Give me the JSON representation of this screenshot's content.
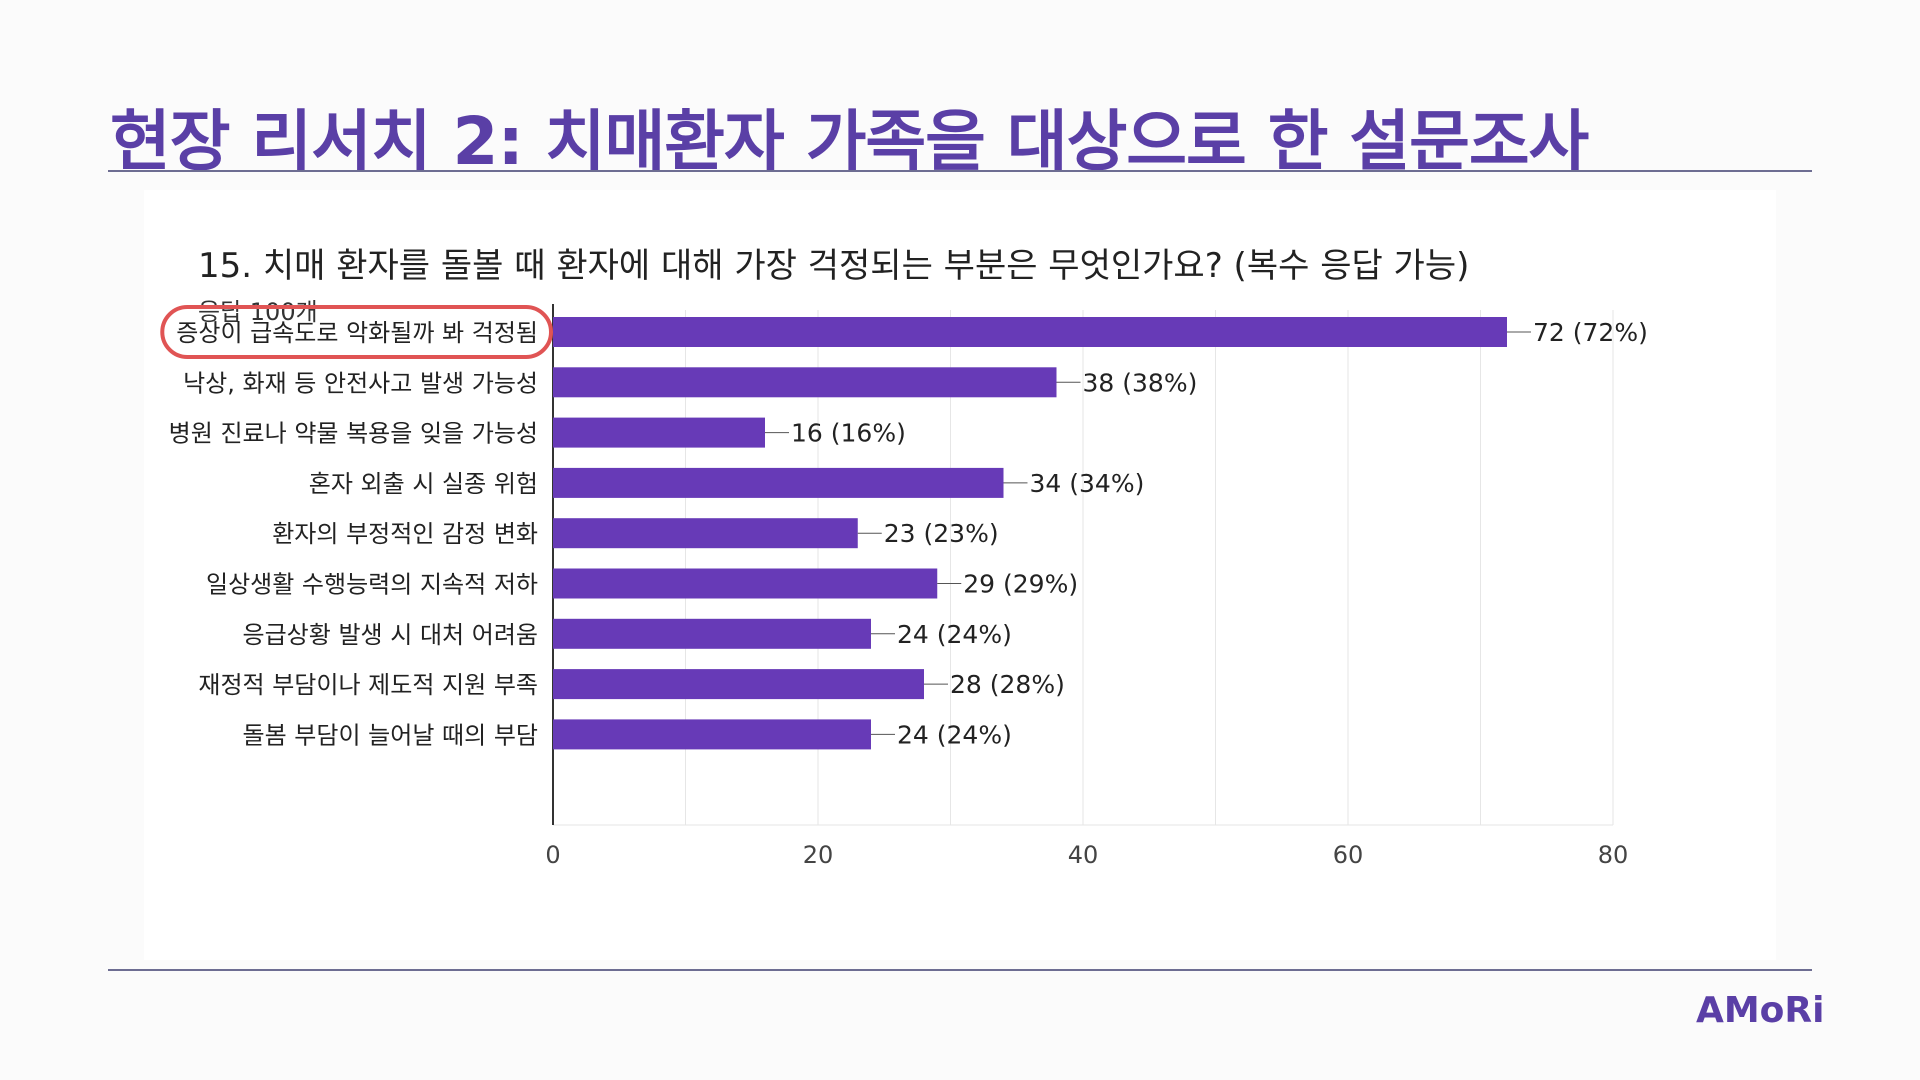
{
  "slide": {
    "title": "현장 리서치 2: 치매환자 가족을 대상으로 한 설문조사",
    "logo": "AMoRi"
  },
  "survey": {
    "question": "15. 치매 환자를 돌볼 때 환자에 대해 가장 걱정되는 부분은 무엇인가요? (복수 응답 가능)",
    "responses": "응답 100개"
  },
  "colors": {
    "title": "#5a3fa6",
    "bar": "#673ab7",
    "highlight": "#e05454",
    "grid": "#e6e6e6",
    "axis": "#333333"
  },
  "chart_data": {
    "type": "bar",
    "orientation": "horizontal",
    "categories": [
      "증상이 급속도로 악화될까 봐 걱정됨",
      "낙상, 화재 등 안전사고 발생 가능성",
      "병원 진료나 약물 복용을 잊을 가능성",
      "혼자 외출 시 실종 위험",
      "환자의 부정적인 감정 변화",
      "일상생활 수행능력의 지속적 저하",
      "응급상황 발생 시 대처 어려움",
      "재정적 부담이나 제도적 지원 부족",
      "돌봄 부담이 늘어날 때의 부담"
    ],
    "values": [
      72,
      38,
      16,
      34,
      23,
      29,
      24,
      28,
      24
    ],
    "labels": [
      "72 (72%)",
      "38 (38%)",
      "16 (16%)",
      "34 (34%)",
      "23 (23%)",
      "29 (29%)",
      "24 (24%)",
      "28 (28%)",
      "24 (24%)"
    ],
    "xlim": [
      0,
      80
    ],
    "xticks": [
      0,
      20,
      40,
      60,
      80
    ],
    "highlighted_index": 0,
    "title": "",
    "xlabel": "",
    "ylabel": ""
  }
}
